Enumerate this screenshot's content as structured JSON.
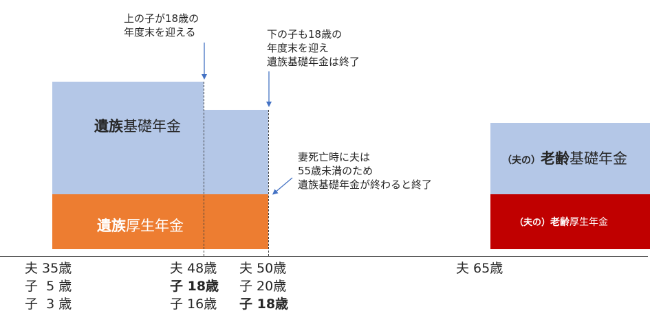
{
  "colors": {
    "kiso_blue": "#b4c7e7",
    "kosei_orange": "#ed7d31",
    "rourei_red": "#c00000",
    "arrow_blue": "#4472c4",
    "axis": "#404040"
  },
  "bars": {
    "izoku_kiso": {
      "bold": "遺族",
      "rest": "基礎年金"
    },
    "izoku_kosei": {
      "bold": "遺族",
      "rest": "厚生年金"
    },
    "rourei_kiso": {
      "prefix": "（夫の）",
      "bold": "老齢",
      "rest": "基礎年金"
    },
    "rourei_kosei": {
      "prefix": "（夫の）",
      "bold": "老齢",
      "rest": "厚生年金"
    }
  },
  "annotations": {
    "eldest_18": [
      "上の子が18歳の",
      "年度末を迎える"
    ],
    "youngest_18": [
      "下の子も18歳の",
      "年度末を迎え",
      "遺族基礎年金は終了"
    ],
    "husband_under55": [
      "妻死亡時に夫は",
      "55歳未満のため",
      "遺族基礎年金が終わると終了"
    ]
  },
  "ages": {
    "col1": [
      "夫 35歳",
      "子  5 歳",
      "子  3 歳"
    ],
    "col2": [
      "夫 48歳",
      "子 18歳",
      "子 16歳"
    ],
    "col3": [
      "夫 50歳",
      "子 20歳",
      "子 18歳"
    ],
    "col4": [
      "夫 65歳"
    ]
  }
}
